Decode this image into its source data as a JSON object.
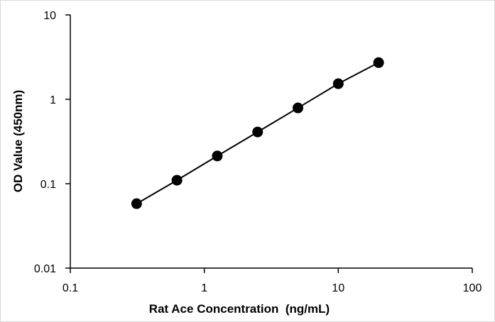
{
  "chart_data": {
    "type": "scatter",
    "title": "",
    "xlabel": "Rat Ace Concentration  (ng/mL)",
    "ylabel": "OD Value (450nm)",
    "x_scale": "log",
    "y_scale": "log",
    "xlim": [
      0.1,
      100
    ],
    "ylim": [
      0.01,
      10
    ],
    "x_ticks": [
      0.1,
      1,
      10,
      100
    ],
    "y_ticks": [
      0.01,
      0.1,
      1,
      10
    ],
    "x_tick_labels": [
      "0.1",
      "1",
      "10",
      "100"
    ],
    "y_tick_labels": [
      "0.01",
      "0.1",
      "1",
      "10"
    ],
    "grid": false,
    "legend": "none",
    "marker_color": "#000000",
    "line_color": "#000000",
    "series": [
      {
        "x": [
          0.3125,
          0.625,
          1.25,
          2.5,
          5,
          10,
          20
        ],
        "y": [
          0.058,
          0.11,
          0.213,
          0.41,
          0.79,
          1.53,
          2.72
        ],
        "trendline": true
      }
    ]
  }
}
